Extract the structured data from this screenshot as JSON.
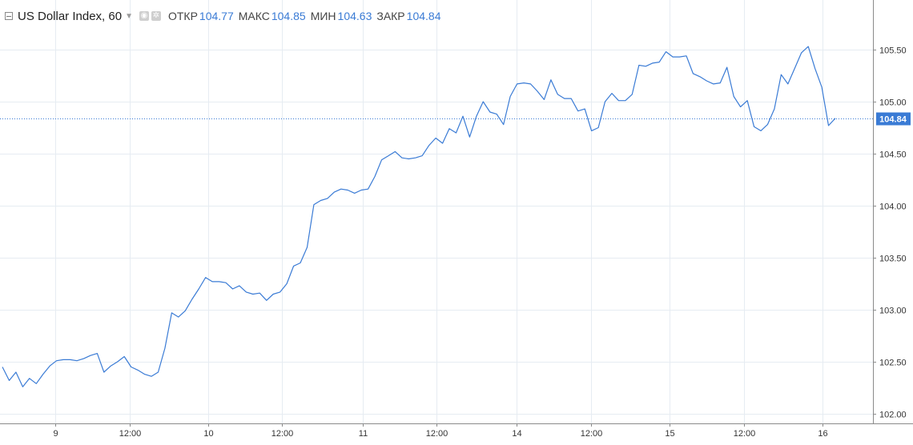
{
  "legend": {
    "symbol": "US Dollar Index, 60",
    "open_label": "ОТКР",
    "open_value": "104.77",
    "high_label": "МАКС",
    "high_value": "104.85",
    "low_label": "МИН",
    "low_value": "104.63",
    "close_label": "ЗАКР",
    "close_value": "104.84"
  },
  "price_badge": "104.84",
  "colors": {
    "line": "#3a7bd5",
    "grid": "#e6ecf2",
    "axis": "#8b8b8b",
    "badge": "#3a7bd5"
  },
  "chart_data": {
    "type": "line",
    "title": "",
    "xlabel": "",
    "ylabel": "",
    "ylim": [
      101.98,
      105.85
    ],
    "y_ticks": [
      "105.50",
      "105.00",
      "104.50",
      "104.00",
      "103.50",
      "103.00",
      "102.50",
      "102.00"
    ],
    "x_ticks": [
      "9",
      "12:00",
      "10",
      "12:00",
      "11",
      "12:00",
      "14",
      "12:00",
      "15",
      "12:00",
      "16"
    ],
    "current_price": 104.84,
    "grid": true,
    "series": [
      {
        "values": [
          102.45,
          102.32,
          102.4,
          102.26,
          102.34,
          102.29,
          102.38,
          102.46,
          102.51,
          102.52,
          102.52,
          102.51,
          102.53,
          102.56,
          102.58,
          102.4,
          102.46,
          102.5,
          102.55,
          102.45,
          102.42,
          102.38,
          102.36,
          102.4,
          102.63,
          102.97,
          102.93,
          102.99,
          103.1,
          103.2,
          103.31,
          103.27,
          103.27,
          103.26,
          103.2,
          103.23,
          103.17,
          103.15,
          103.16,
          103.09,
          103.15,
          103.17,
          103.25,
          103.42,
          103.45,
          103.6,
          104.01,
          104.05,
          104.07,
          104.13,
          104.16,
          104.15,
          104.12,
          104.15,
          104.16,
          104.28,
          104.44,
          104.48,
          104.52,
          104.46,
          104.45,
          104.46,
          104.48,
          104.58,
          104.65,
          104.6,
          104.74,
          104.7,
          104.86,
          104.66,
          104.86,
          105.0,
          104.9,
          104.88,
          104.78,
          105.05,
          105.17,
          105.18,
          105.17,
          105.1,
          105.02,
          105.21,
          105.07,
          105.03,
          105.03,
          104.91,
          104.93,
          104.72,
          104.75,
          105.0,
          105.08,
          105.01,
          105.01,
          105.07,
          105.35,
          105.34,
          105.37,
          105.38,
          105.48,
          105.43,
          105.43,
          105.44,
          105.27,
          105.24,
          105.2,
          105.17,
          105.18,
          105.33,
          105.05,
          104.95,
          105.01,
          104.76,
          104.72,
          104.78,
          104.93,
          105.26,
          105.17,
          105.32,
          105.47,
          105.53,
          105.32,
          105.14,
          104.77,
          104.84
        ]
      }
    ]
  }
}
